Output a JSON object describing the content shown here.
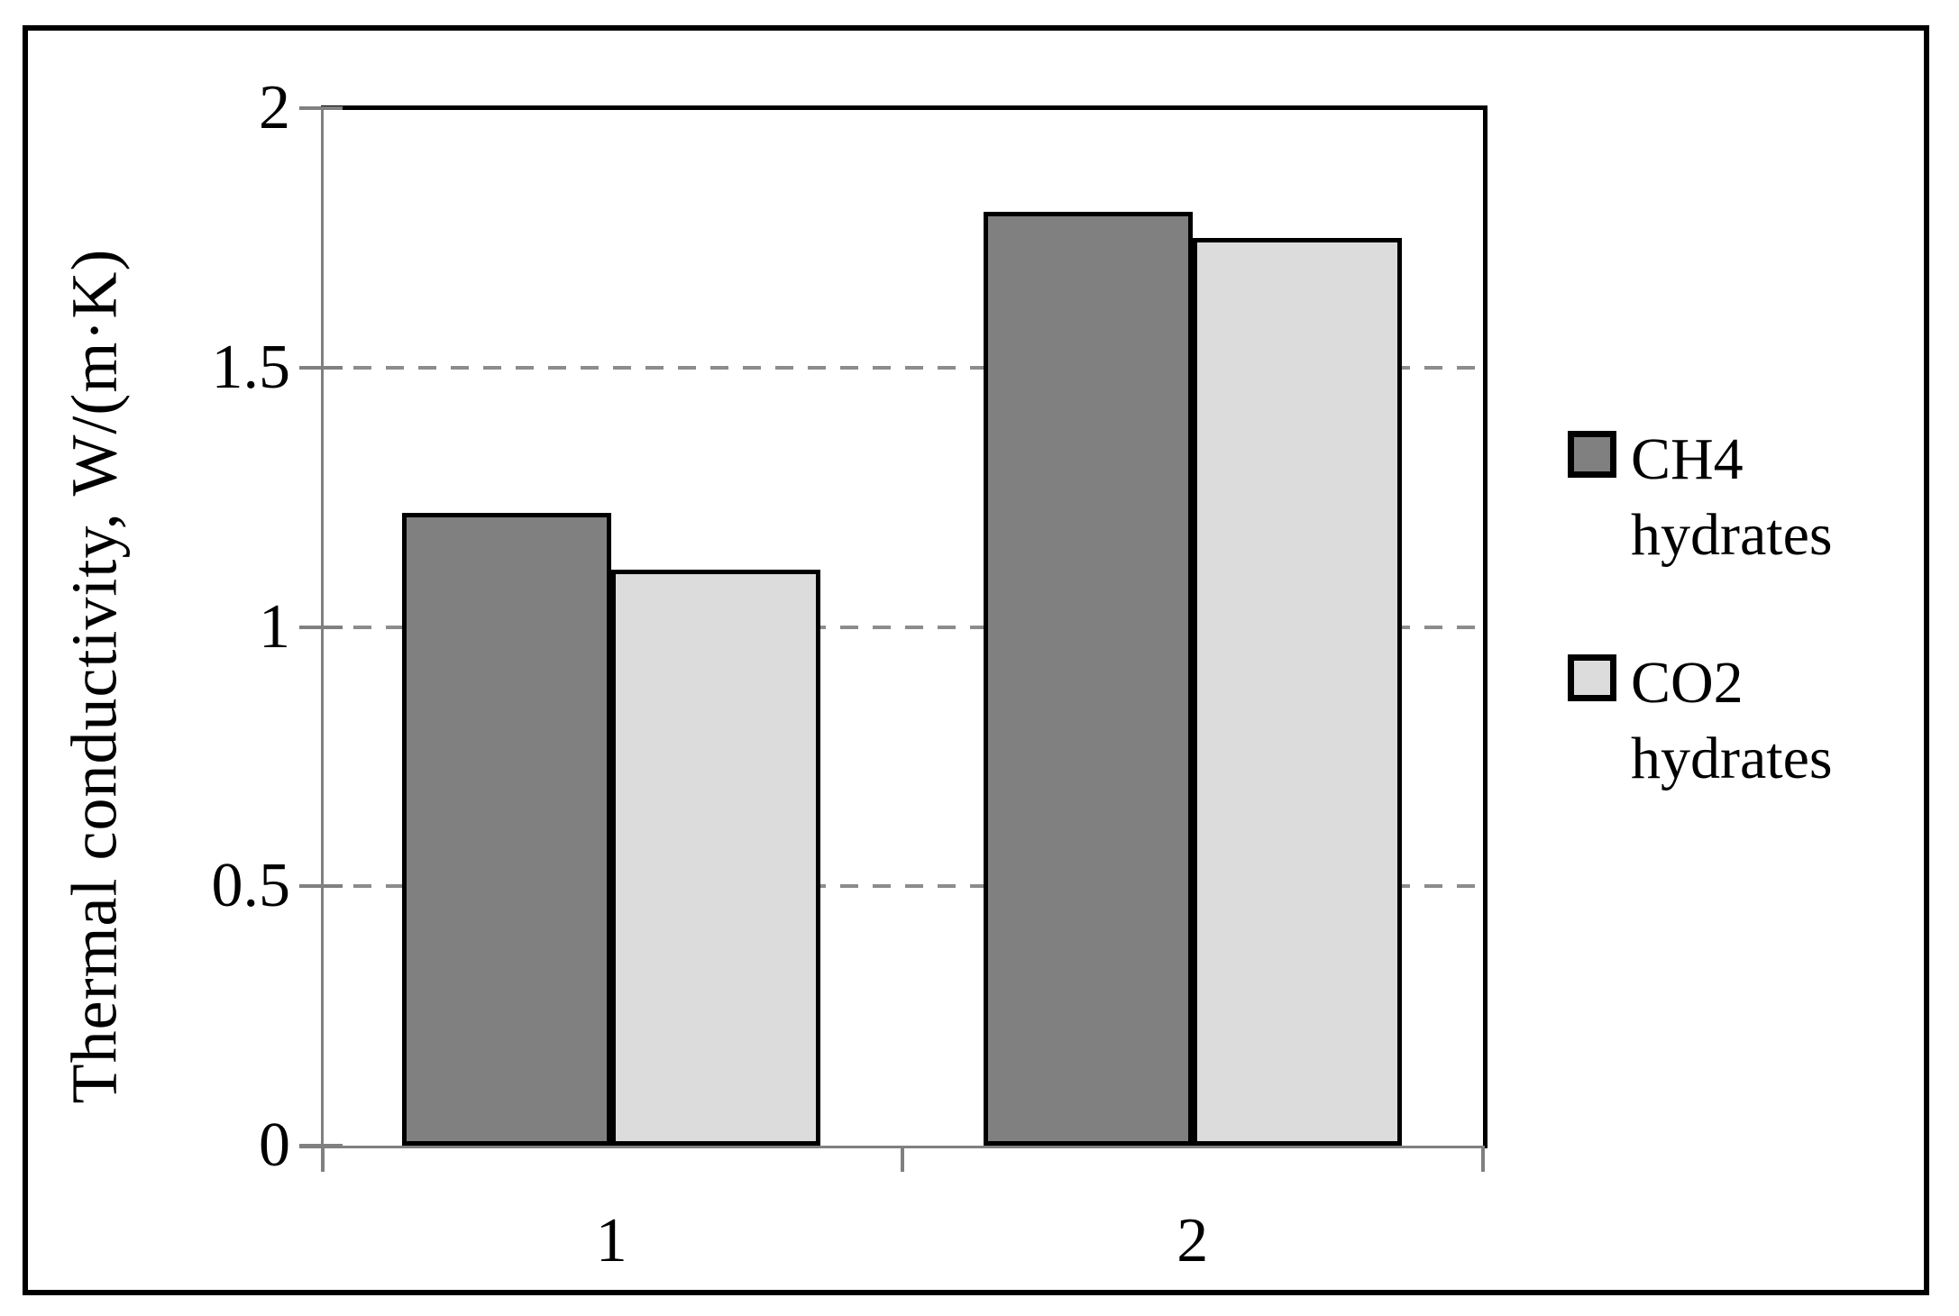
{
  "chart_data": {
    "type": "bar",
    "categories": [
      "1",
      "2"
    ],
    "series": [
      {
        "name": "CH4 hydrates",
        "values": [
          1.22,
          1.8
        ],
        "color": "#808080"
      },
      {
        "name": "CO2 hydrates",
        "values": [
          1.11,
          1.75
        ],
        "color": "#dcdcdc"
      }
    ],
    "title": "",
    "xlabel": "",
    "ylabel": "Thermal conductivity, W/(m·K)",
    "ylim": [
      0,
      2
    ],
    "yticks": [
      0,
      0.5,
      1,
      1.5,
      2
    ],
    "ytick_labels": [
      "0",
      "0.5",
      "1",
      "1.5",
      "2"
    ],
    "grid": "horizontal-dashed-interior",
    "legend_position": "right",
    "bar_border_color": "#000000"
  },
  "colors": {
    "axis_gray": "#808080",
    "gridline_gray": "#8c8c8c",
    "frame_black": "#000000",
    "background": "#ffffff"
  }
}
